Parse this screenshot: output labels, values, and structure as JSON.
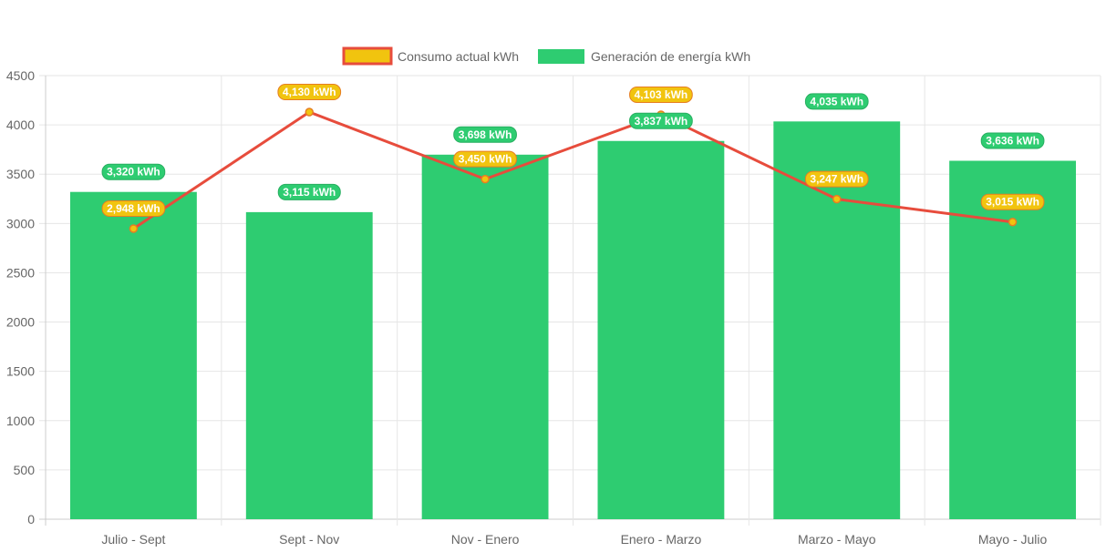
{
  "chart_data": {
    "type": "bar",
    "categories": [
      "Julio - Sept",
      "Sept - Nov",
      "Nov - Enero",
      "Enero - Marzo",
      "Marzo - Mayo",
      "Mayo - Julio"
    ],
    "ylim": [
      0,
      4500
    ],
    "yticks": [
      0,
      500,
      1000,
      1500,
      2000,
      2500,
      3000,
      3500,
      4000,
      4500
    ],
    "grid": true,
    "legend_position": "top",
    "series": [
      {
        "name": "Consumo actual kWh",
        "type": "line",
        "values": [
          2948,
          4130,
          3450,
          4103,
          3247,
          3015
        ],
        "labels": [
          "2,948 kWh",
          "4,130 kWh",
          "3,450 kWh",
          "4,103 kWh",
          "3,247 kWh",
          "3,015 kWh"
        ],
        "color": "#e74c3c",
        "fill_color": "#f1c40f",
        "label_border": "#e67e22"
      },
      {
        "name": "Generación de energía kWh",
        "type": "bar",
        "values": [
          3320,
          3115,
          3698,
          3837,
          4035,
          3636
        ],
        "labels": [
          "3,320 kWh",
          "3,115 kWh",
          "3,698 kWh",
          "3,837 kWh",
          "4,035 kWh",
          "3,636 kWh"
        ],
        "color": "#2ecc71",
        "label_border": "#27ae60"
      }
    ]
  }
}
